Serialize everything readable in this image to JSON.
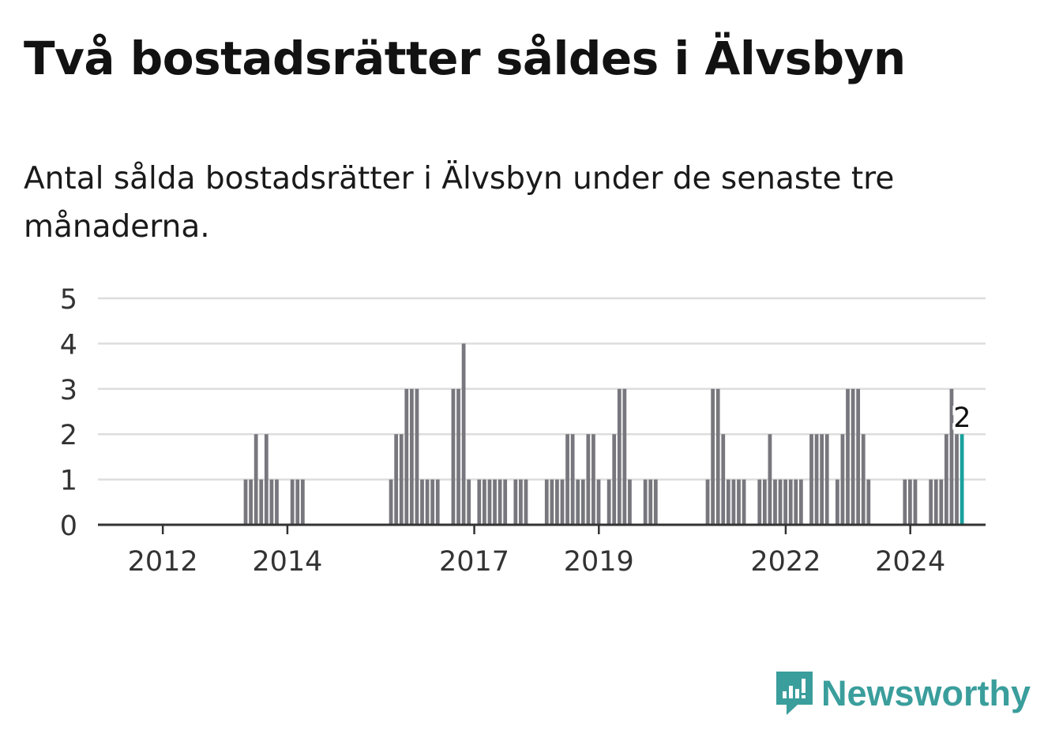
{
  "title": "Två bostadsrätter såldes i Älvsbyn",
  "subtitle": "Antal sålda bostadsrätter i Älvsbyn under de senaste tre månaderna.",
  "brand": {
    "name": "Newsworthy",
    "icon": "newsworthy-logo-icon",
    "color": "#3a9e9c"
  },
  "colors": {
    "bar": "#77777d",
    "highlight": "#1aa19e",
    "grid": "#dddddd",
    "axis": "#333333"
  },
  "chart_data": {
    "type": "bar",
    "x_start": "2011-01",
    "x_end": "2025-03",
    "ylim": [
      0,
      5
    ],
    "y_ticks": [
      "0",
      "1",
      "2",
      "3",
      "4",
      "5"
    ],
    "x_ticks": [
      {
        "label": "2012",
        "month": "2012-01"
      },
      {
        "label": "2014",
        "month": "2014-01"
      },
      {
        "label": "2017",
        "month": "2017-01"
      },
      {
        "label": "2019",
        "month": "2019-01"
      },
      {
        "label": "2022",
        "month": "2022-01"
      },
      {
        "label": "2024",
        "month": "2024-01"
      }
    ],
    "grid": true,
    "annotation": {
      "month": "2024-11",
      "label": "2"
    },
    "highlight_month": "2024-11",
    "series": [
      {
        "values": [
          {
            "month": "2013-05",
            "value": 1
          },
          {
            "month": "2013-06",
            "value": 1
          },
          {
            "month": "2013-07",
            "value": 2
          },
          {
            "month": "2013-08",
            "value": 1
          },
          {
            "month": "2013-09",
            "value": 2
          },
          {
            "month": "2013-10",
            "value": 1
          },
          {
            "month": "2013-11",
            "value": 1
          },
          {
            "month": "2014-02",
            "value": 1
          },
          {
            "month": "2014-03",
            "value": 1
          },
          {
            "month": "2014-04",
            "value": 1
          },
          {
            "month": "2015-09",
            "value": 1
          },
          {
            "month": "2015-10",
            "value": 2
          },
          {
            "month": "2015-11",
            "value": 2
          },
          {
            "month": "2015-12",
            "value": 3
          },
          {
            "month": "2016-01",
            "value": 3
          },
          {
            "month": "2016-02",
            "value": 3
          },
          {
            "month": "2016-03",
            "value": 1
          },
          {
            "month": "2016-04",
            "value": 1
          },
          {
            "month": "2016-05",
            "value": 1
          },
          {
            "month": "2016-06",
            "value": 1
          },
          {
            "month": "2016-09",
            "value": 3
          },
          {
            "month": "2016-10",
            "value": 3
          },
          {
            "month": "2016-11",
            "value": 4
          },
          {
            "month": "2016-12",
            "value": 1
          },
          {
            "month": "2017-02",
            "value": 1
          },
          {
            "month": "2017-03",
            "value": 1
          },
          {
            "month": "2017-04",
            "value": 1
          },
          {
            "month": "2017-05",
            "value": 1
          },
          {
            "month": "2017-06",
            "value": 1
          },
          {
            "month": "2017-07",
            "value": 1
          },
          {
            "month": "2017-09",
            "value": 1
          },
          {
            "month": "2017-10",
            "value": 1
          },
          {
            "month": "2017-11",
            "value": 1
          },
          {
            "month": "2018-03",
            "value": 1
          },
          {
            "month": "2018-04",
            "value": 1
          },
          {
            "month": "2018-05",
            "value": 1
          },
          {
            "month": "2018-06",
            "value": 1
          },
          {
            "month": "2018-07",
            "value": 2
          },
          {
            "month": "2018-08",
            "value": 2
          },
          {
            "month": "2018-09",
            "value": 1
          },
          {
            "month": "2018-10",
            "value": 1
          },
          {
            "month": "2018-11",
            "value": 2
          },
          {
            "month": "2018-12",
            "value": 2
          },
          {
            "month": "2019-01",
            "value": 1
          },
          {
            "month": "2019-03",
            "value": 1
          },
          {
            "month": "2019-04",
            "value": 2
          },
          {
            "month": "2019-05",
            "value": 3
          },
          {
            "month": "2019-06",
            "value": 3
          },
          {
            "month": "2019-07",
            "value": 1
          },
          {
            "month": "2019-10",
            "value": 1
          },
          {
            "month": "2019-11",
            "value": 1
          },
          {
            "month": "2019-12",
            "value": 1
          },
          {
            "month": "2020-10",
            "value": 1
          },
          {
            "month": "2020-11",
            "value": 3
          },
          {
            "month": "2020-12",
            "value": 3
          },
          {
            "month": "2021-01",
            "value": 2
          },
          {
            "month": "2021-02",
            "value": 1
          },
          {
            "month": "2021-03",
            "value": 1
          },
          {
            "month": "2021-04",
            "value": 1
          },
          {
            "month": "2021-05",
            "value": 1
          },
          {
            "month": "2021-08",
            "value": 1
          },
          {
            "month": "2021-09",
            "value": 1
          },
          {
            "month": "2021-10",
            "value": 2
          },
          {
            "month": "2021-11",
            "value": 1
          },
          {
            "month": "2021-12",
            "value": 1
          },
          {
            "month": "2022-01",
            "value": 1
          },
          {
            "month": "2022-02",
            "value": 1
          },
          {
            "month": "2022-03",
            "value": 1
          },
          {
            "month": "2022-04",
            "value": 1
          },
          {
            "month": "2022-06",
            "value": 2
          },
          {
            "month": "2022-07",
            "value": 2
          },
          {
            "month": "2022-08",
            "value": 2
          },
          {
            "month": "2022-09",
            "value": 2
          },
          {
            "month": "2022-11",
            "value": 1
          },
          {
            "month": "2022-12",
            "value": 2
          },
          {
            "month": "2023-01",
            "value": 3
          },
          {
            "month": "2023-02",
            "value": 3
          },
          {
            "month": "2023-03",
            "value": 3
          },
          {
            "month": "2023-04",
            "value": 2
          },
          {
            "month": "2023-05",
            "value": 1
          },
          {
            "month": "2023-12",
            "value": 1
          },
          {
            "month": "2024-01",
            "value": 1
          },
          {
            "month": "2024-02",
            "value": 1
          },
          {
            "month": "2024-05",
            "value": 1
          },
          {
            "month": "2024-06",
            "value": 1
          },
          {
            "month": "2024-07",
            "value": 1
          },
          {
            "month": "2024-08",
            "value": 2
          },
          {
            "month": "2024-09",
            "value": 3
          },
          {
            "month": "2024-10",
            "value": 2
          },
          {
            "month": "2024-11",
            "value": 2
          }
        ]
      }
    ]
  }
}
